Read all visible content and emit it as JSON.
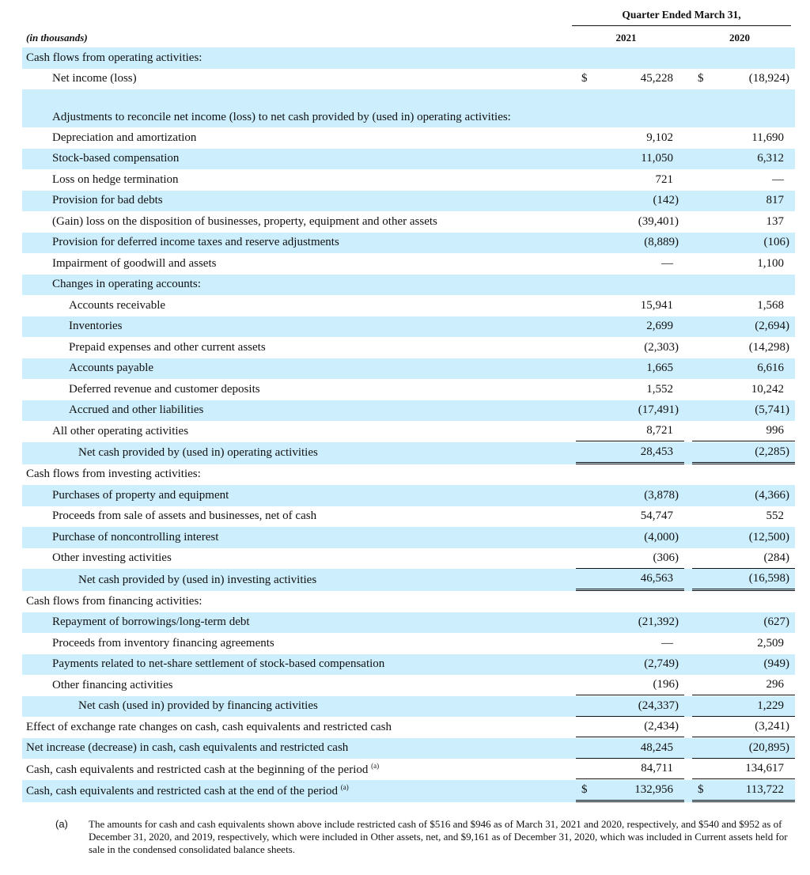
{
  "header": {
    "title": "Quarter Ended March 31,",
    "units": "(in thousands)",
    "years": [
      "2021",
      "2020"
    ]
  },
  "rows": [
    {
      "label": "Cash flows from operating activities:",
      "indent": 0,
      "v1": "",
      "v2": ""
    },
    {
      "label": "Net income (loss)",
      "indent": 1,
      "d1": "$",
      "v1": "45,228",
      "d2": "$",
      "v2": "(18,924)"
    },
    {
      "label": "Adjustments to reconcile net income (loss) to net cash provided by (used in) operating activities:",
      "indent": 1,
      "v1": "",
      "v2": "",
      "tall": true
    },
    {
      "label": "Depreciation and amortization",
      "indent": 1,
      "v1": "9,102",
      "v2": "11,690"
    },
    {
      "label": "Stock-based compensation",
      "indent": 1,
      "v1": "11,050",
      "v2": "6,312"
    },
    {
      "label": "Loss on hedge termination",
      "indent": 1,
      "v1": "721",
      "v2": "—"
    },
    {
      "label": "Provision for bad debts",
      "indent": 1,
      "v1": "(142)",
      "v2": "817"
    },
    {
      "label": "(Gain) loss on the disposition of businesses, property, equipment and other assets",
      "indent": 1,
      "v1": "(39,401)",
      "v2": "137"
    },
    {
      "label": "Provision for deferred income taxes and reserve adjustments",
      "indent": 1,
      "v1": "(8,889)",
      "v2": "(106)"
    },
    {
      "label": "Impairment of goodwill and assets",
      "indent": 1,
      "v1": "—",
      "v2": "1,100"
    },
    {
      "label": "Changes in operating accounts:",
      "indent": 1,
      "v1": "",
      "v2": ""
    },
    {
      "label": "Accounts receivable",
      "indent": 2,
      "v1": "15,941",
      "v2": "1,568"
    },
    {
      "label": "Inventories",
      "indent": 2,
      "v1": "2,699",
      "v2": "(2,694)"
    },
    {
      "label": "Prepaid expenses and other current assets",
      "indent": 2,
      "v1": "(2,303)",
      "v2": "(14,298)"
    },
    {
      "label": "Accounts payable",
      "indent": 2,
      "v1": "1,665",
      "v2": "6,616"
    },
    {
      "label": "Deferred revenue and customer deposits",
      "indent": 2,
      "v1": "1,552",
      "v2": "10,242"
    },
    {
      "label": "Accrued and other liabilities",
      "indent": 2,
      "v1": "(17,491)",
      "v2": "(5,741)"
    },
    {
      "label": "All other operating activities",
      "indent": 1,
      "v1": "8,721",
      "v2": "996",
      "rule": "single"
    },
    {
      "label": "Net cash provided by (used in) operating activities",
      "indent": 3,
      "v1": "28,453",
      "v2": "(2,285)",
      "rule": "double"
    },
    {
      "label": "Cash flows from investing activities:",
      "indent": 0,
      "v1": "",
      "v2": ""
    },
    {
      "label": "Purchases of property and equipment",
      "indent": 1,
      "v1": "(3,878)",
      "v2": "(4,366)"
    },
    {
      "label": "Proceeds from sale of assets and businesses, net of cash",
      "indent": 1,
      "v1": "54,747",
      "v2": "552"
    },
    {
      "label": "Purchase of noncontrolling interest",
      "indent": 1,
      "v1": "(4,000)",
      "v2": "(12,500)"
    },
    {
      "label": "Other investing activities",
      "indent": 1,
      "v1": "(306)",
      "v2": "(284)",
      "rule": "single"
    },
    {
      "label": "Net cash provided by (used in) investing activities",
      "indent": 3,
      "v1": "46,563",
      "v2": "(16,598)",
      "rule": "double"
    },
    {
      "label": "Cash flows from financing activities:",
      "indent": 0,
      "v1": "",
      "v2": ""
    },
    {
      "label": "Repayment of borrowings/long-term debt",
      "indent": 1,
      "v1": "(21,392)",
      "v2": "(627)"
    },
    {
      "label": "Proceeds from inventory financing agreements",
      "indent": 1,
      "v1": "—",
      "v2": "2,509"
    },
    {
      "label": "Payments related to net-share settlement of stock-based compensation",
      "indent": 1,
      "v1": "(2,749)",
      "v2": "(949)"
    },
    {
      "label": "Other financing activities",
      "indent": 1,
      "v1": "(196)",
      "v2": "296",
      "rule": "single"
    },
    {
      "label": "Net cash (used in) provided by financing activities",
      "indent": 3,
      "v1": "(24,337)",
      "v2": "1,229",
      "rule": "single"
    },
    {
      "label": "Effect of exchange rate changes on cash, cash equivalents and restricted cash",
      "indent": 0,
      "v1": "(2,434)",
      "v2": "(3,241)",
      "rule": "single"
    },
    {
      "label": "Net increase (decrease) in cash, cash equivalents and restricted cash",
      "indent": 0,
      "v1": "48,245",
      "v2": "(20,895)",
      "rule": "single"
    },
    {
      "label": "Cash, cash equivalents and restricted cash at the beginning of the period",
      "sup": "(a)",
      "indent": 0,
      "v1": "84,711",
      "v2": "134,617",
      "rule": "single"
    },
    {
      "label": "Cash, cash equivalents and restricted cash at the end of the period",
      "sup": "(a)",
      "indent": 0,
      "d1": "$",
      "v1": "132,956",
      "d2": "$",
      "v2": "113,722",
      "rule": "double"
    }
  ],
  "footnote": {
    "mark": "(a)",
    "text": "The amounts for cash and cash equivalents shown above include restricted cash of $516 and $946 as of March 31, 2021 and 2020, respectively, and $540 and $952 as of December 31, 2020, and 2019, respectively, which were included in Other assets, net, and $9,161 as of December 31, 2020, which was included in Current assets held for sale in the condensed consolidated balance sheets."
  },
  "colors": {
    "row_shade": "#cdeefd",
    "rule": "#111111"
  }
}
